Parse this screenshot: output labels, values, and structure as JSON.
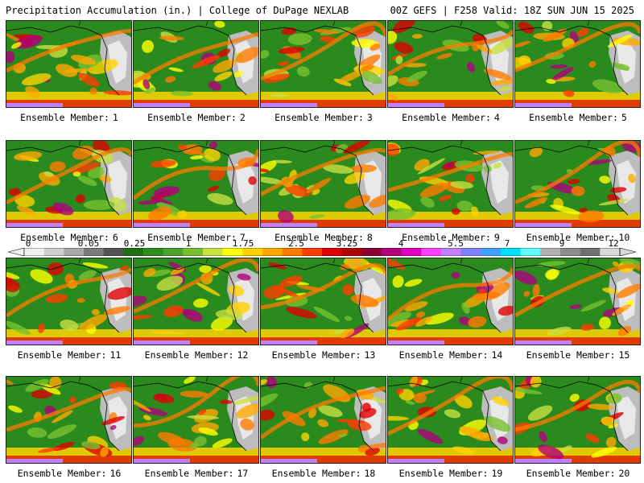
{
  "header": {
    "title": "Precipitation Accumulation (in.) | College of DuPage NEXLAB",
    "run_info": "00Z GEFS | F258 Valid: 18Z SUN JUN 15 2025"
  },
  "member_label": "Ensemble Member:",
  "members": [
    {
      "number": "1"
    },
    {
      "number": "2"
    },
    {
      "number": "3"
    },
    {
      "number": "4"
    },
    {
      "number": "5"
    },
    {
      "number": "6"
    },
    {
      "number": "7"
    },
    {
      "number": "8"
    },
    {
      "number": "9"
    },
    {
      "number": "10"
    },
    {
      "number": "11"
    },
    {
      "number": "12"
    },
    {
      "number": "13"
    },
    {
      "number": "14"
    },
    {
      "number": "15"
    },
    {
      "number": "16"
    },
    {
      "number": "17"
    },
    {
      "number": "18"
    },
    {
      "number": "19"
    },
    {
      "number": "20"
    }
  ],
  "colorbar": {
    "labels": [
      "0",
      "0.05",
      "0.25",
      "1",
      "1.75",
      "2.5",
      "3.25",
      "4",
      "5.5",
      "7",
      "9",
      "12"
    ],
    "colors": [
      "#f0f0f0",
      "#cfcfcf",
      "#a8a8a8",
      "#7a7a7a",
      "#555555",
      "#1f6e12",
      "#2d8c1c",
      "#4aa32a",
      "#78c030",
      "#c8e040",
      "#ffff00",
      "#ffd200",
      "#ffa800",
      "#ff7a00",
      "#ff3c00",
      "#e00000",
      "#b00000",
      "#8a0030",
      "#b0007a",
      "#e000c0",
      "#ff40ff",
      "#c080ff",
      "#8080ff",
      "#40a0ff",
      "#00e0ff",
      "#60ffff",
      "#b0b0b0",
      "#8c8c8c",
      "#707070",
      "#d8d8d8"
    ]
  }
}
